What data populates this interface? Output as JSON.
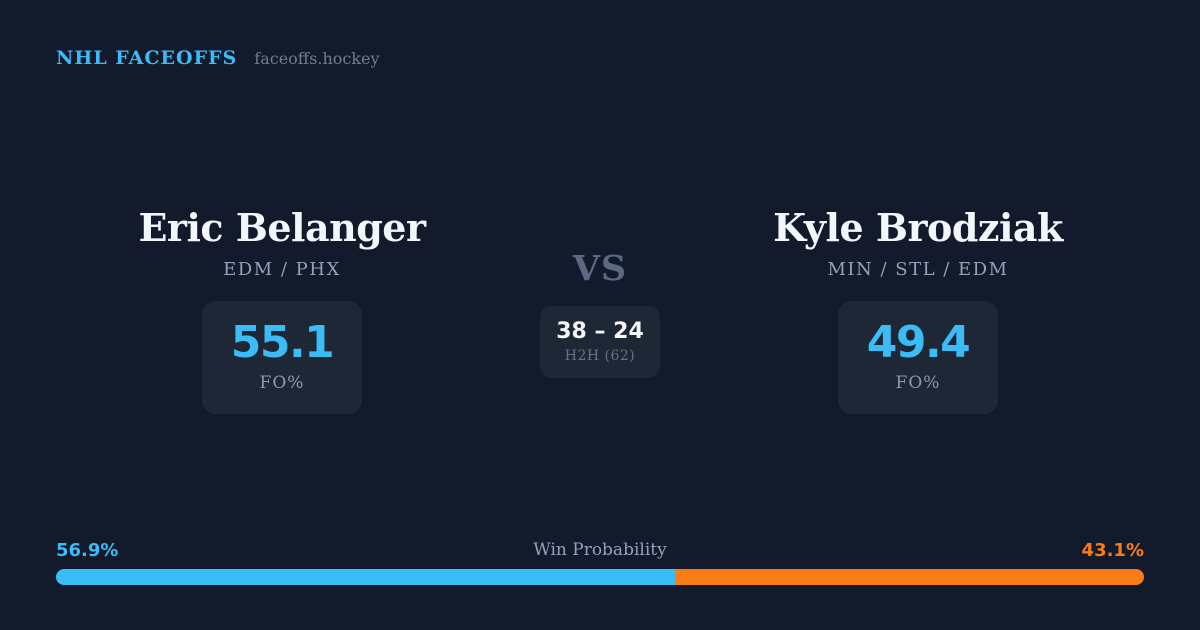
{
  "theme": {
    "bg": "#121a2b",
    "card_bg": "#1d2736",
    "accent_blue": "#3cbcf7",
    "accent_orange": "#f97c16",
    "text_primary": "#f3f6fb",
    "text_muted": "#93a2ba",
    "text_faint": "#5b6a82"
  },
  "header": {
    "brand": "NHL FACEOFFS",
    "site": "faceoffs.hockey"
  },
  "matchup": {
    "left": {
      "name": "Eric Belanger",
      "teams": "EDM / PHX",
      "stat_value": "55.1",
      "stat_label": "FO%"
    },
    "versus": {
      "label": "VS",
      "h2h_score": "38 – 24",
      "h2h_label": "H2H (62)"
    },
    "right": {
      "name": "Kyle Brodziak",
      "teams": "MIN / STL / EDM",
      "stat_value": "49.4",
      "stat_label": "FO%"
    }
  },
  "win_probability": {
    "title": "Win Probability",
    "left_label": "56.9%",
    "right_label": "43.1%",
    "left_value": 56.9,
    "right_value": 43.1
  },
  "chart_data": {
    "type": "bar",
    "subtype": "horizontal-stacked-100pct",
    "title": "Win Probability",
    "segments": [
      {
        "label": "Eric Belanger",
        "value": 56.9,
        "color": "#3cbcf7"
      },
      {
        "label": "Kyle Brodziak",
        "value": 43.1,
        "color": "#f97c16"
      }
    ],
    "related_stats": {
      "faceoff_pct": [
        {
          "player": "Eric Belanger",
          "value": 55.1
        },
        {
          "player": "Kyle Brodziak",
          "value": 49.4
        }
      ],
      "head_to_head": {
        "left_wins": 38,
        "right_wins": 24,
        "total": 62
      }
    },
    "xlim": [
      0,
      100
    ],
    "legend": "none",
    "grid": false
  }
}
